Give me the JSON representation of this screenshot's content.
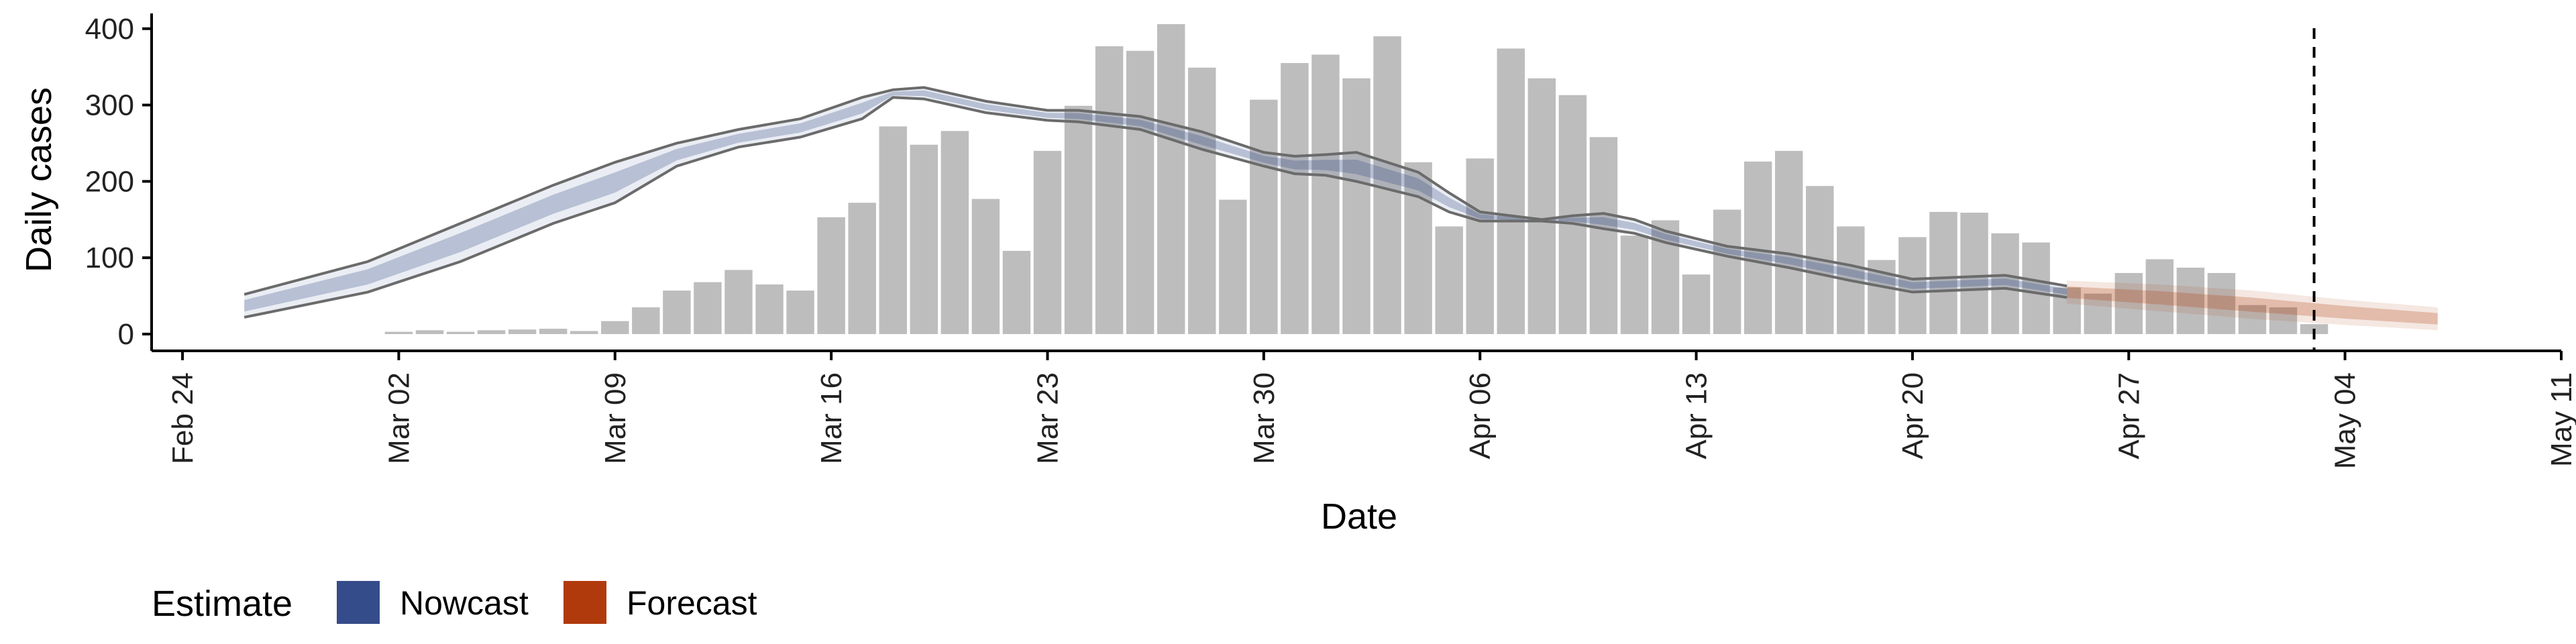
{
  "chart_data": {
    "type": "bar",
    "xlabel": "Date",
    "ylabel": "Daily cases",
    "ylim": [
      0,
      420
    ],
    "yticks": [
      0,
      100,
      200,
      300,
      400
    ],
    "xlim": [
      "2020-02-23",
      "2020-05-11"
    ],
    "xticks": [
      "2020-02-24",
      "2020-03-02",
      "2020-03-09",
      "2020-03-16",
      "2020-03-23",
      "2020-03-30",
      "2020-04-06",
      "2020-04-13",
      "2020-04-20",
      "2020-04-27",
      "2020-05-04",
      "2020-05-11"
    ],
    "xtick_labels": [
      "Feb 24",
      "Mar 02",
      "Mar 09",
      "Mar 16",
      "Mar 23",
      "Mar 30",
      "Apr 06",
      "Apr 13",
      "Apr 20",
      "Apr 27",
      "May 04",
      "May 11"
    ],
    "reference_line_date": "2020-05-03",
    "grid": false,
    "legend": {
      "title": "Estimate",
      "position": "bottom-left",
      "items": [
        {
          "label": "Nowcast",
          "color": "#354C8A"
        },
        {
          "label": "Forecast",
          "color": "#B03A0C"
        }
      ]
    },
    "colors": {
      "bars": "#BDBDBD",
      "nowcast_band": "#354C8A",
      "forecast_band": "#B03A0C",
      "outline": "#6b6b6b",
      "reference_line": "#000000"
    },
    "series": [
      {
        "name": "Daily cases",
        "type": "bar",
        "x": [
          "2020-03-02",
          "2020-03-03",
          "2020-03-04",
          "2020-03-05",
          "2020-03-06",
          "2020-03-07",
          "2020-03-08",
          "2020-03-09",
          "2020-03-10",
          "2020-03-11",
          "2020-03-12",
          "2020-03-13",
          "2020-03-14",
          "2020-03-15",
          "2020-03-16",
          "2020-03-17",
          "2020-03-18",
          "2020-03-19",
          "2020-03-20",
          "2020-03-21",
          "2020-03-22",
          "2020-03-23",
          "2020-03-24",
          "2020-03-25",
          "2020-03-26",
          "2020-03-27",
          "2020-03-28",
          "2020-03-29",
          "2020-03-30",
          "2020-03-31",
          "2020-04-01",
          "2020-04-02",
          "2020-04-03",
          "2020-04-04",
          "2020-04-05",
          "2020-04-06",
          "2020-04-07",
          "2020-04-08",
          "2020-04-09",
          "2020-04-10",
          "2020-04-11",
          "2020-04-12",
          "2020-04-13",
          "2020-04-14",
          "2020-04-15",
          "2020-04-16",
          "2020-04-17",
          "2020-04-18",
          "2020-04-19",
          "2020-04-20",
          "2020-04-21",
          "2020-04-22",
          "2020-04-23",
          "2020-04-24",
          "2020-04-25",
          "2020-04-26",
          "2020-04-27",
          "2020-04-28",
          "2020-04-29",
          "2020-04-30",
          "2020-05-01",
          "2020-05-02",
          "2020-05-03"
        ],
        "values": [
          3,
          5,
          3,
          5,
          6,
          7,
          4,
          17,
          35,
          57,
          68,
          84,
          65,
          57,
          153,
          172,
          272,
          248,
          266,
          177,
          109,
          240,
          299,
          377,
          371,
          406,
          349,
          176,
          307,
          355,
          366,
          335,
          390,
          225,
          141,
          230,
          374,
          335,
          313,
          258,
          129,
          149,
          78,
          163,
          226,
          240,
          194,
          141,
          97,
          127,
          160,
          159,
          132,
          120,
          61,
          53,
          80,
          98,
          87,
          80,
          38,
          35,
          13
        ]
      },
      {
        "name": "Nowcast",
        "type": "band",
        "x": [
          "2020-02-26",
          "2020-03-01",
          "2020-03-04",
          "2020-03-07",
          "2020-03-09",
          "2020-03-11",
          "2020-03-13",
          "2020-03-15",
          "2020-03-17",
          "2020-03-18",
          "2020-03-19",
          "2020-03-21",
          "2020-03-23",
          "2020-03-24",
          "2020-03-26",
          "2020-03-28",
          "2020-03-30",
          "2020-03-31",
          "2020-04-01",
          "2020-04-02",
          "2020-04-04",
          "2020-04-05",
          "2020-04-06",
          "2020-04-08",
          "2020-04-09",
          "2020-04-10",
          "2020-04-11",
          "2020-04-12",
          "2020-04-14",
          "2020-04-16",
          "2020-04-18",
          "2020-04-20",
          "2020-04-23",
          "2020-04-25"
        ],
        "upper": [
          52,
          95,
          145,
          195,
          225,
          250,
          268,
          282,
          310,
          320,
          323,
          305,
          293,
          293,
          285,
          265,
          238,
          233,
          235,
          238,
          212,
          185,
          160,
          150,
          155,
          158,
          150,
          135,
          115,
          105,
          90,
          72,
          77,
          63
        ],
        "lower": [
          22,
          55,
          95,
          145,
          172,
          220,
          245,
          258,
          282,
          310,
          308,
          290,
          280,
          278,
          268,
          242,
          220,
          210,
          208,
          200,
          180,
          160,
          148,
          148,
          145,
          138,
          132,
          120,
          102,
          87,
          70,
          55,
          60,
          48
        ]
      },
      {
        "name": "Forecast",
        "type": "band",
        "x": [
          "2020-04-25",
          "2020-04-28",
          "2020-05-01",
          "2020-05-04",
          "2020-05-07"
        ],
        "upper": [
          70,
          65,
          57,
          45,
          35
        ],
        "lower": [
          40,
          30,
          20,
          12,
          5
        ]
      }
    ]
  }
}
